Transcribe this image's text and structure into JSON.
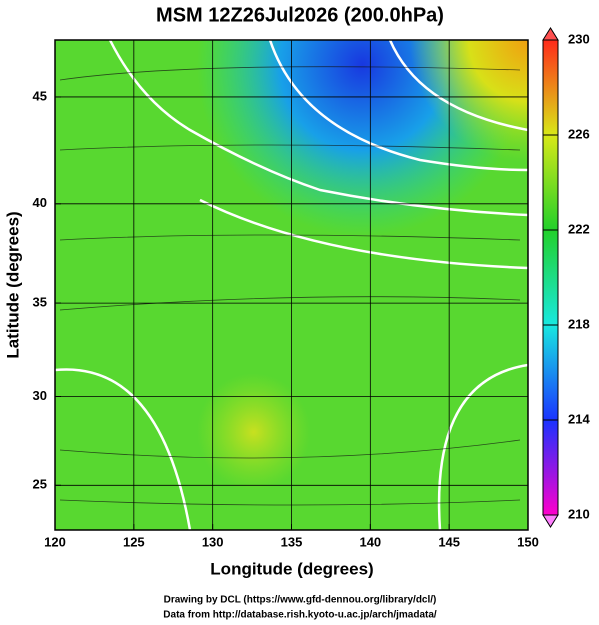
{
  "map": {
    "title": "MSM 12Z26Jul2026 (200.0hPa)",
    "xlabel": "Longitude (degrees)",
    "ylabel": "Latitude  (degrees)",
    "projection": "mercator",
    "xlim": [
      120,
      150
    ],
    "ylim": [
      22.4,
      47.5
    ],
    "xticks": [
      120,
      125,
      130,
      135,
      140,
      145,
      150
    ],
    "yticks": [
      25,
      30,
      35,
      40,
      45
    ],
    "grid": true,
    "colorbar": {
      "lim": [
        210,
        230
      ],
      "ticks": [
        210,
        214,
        218,
        222,
        226,
        230
      ],
      "colors": [
        "#ff00cc",
        "#1a33ff",
        "#18e8e0",
        "#22d02a",
        "#d8e818",
        "#ff2a1a"
      ]
    }
  },
  "credits": [
    "Drawing by DCL (https://www.gfd-dennou.org/library/dcl/)",
    "Data from http://database.rish.kyoto-u.ac.jp/arch/jmadata/"
  ]
}
